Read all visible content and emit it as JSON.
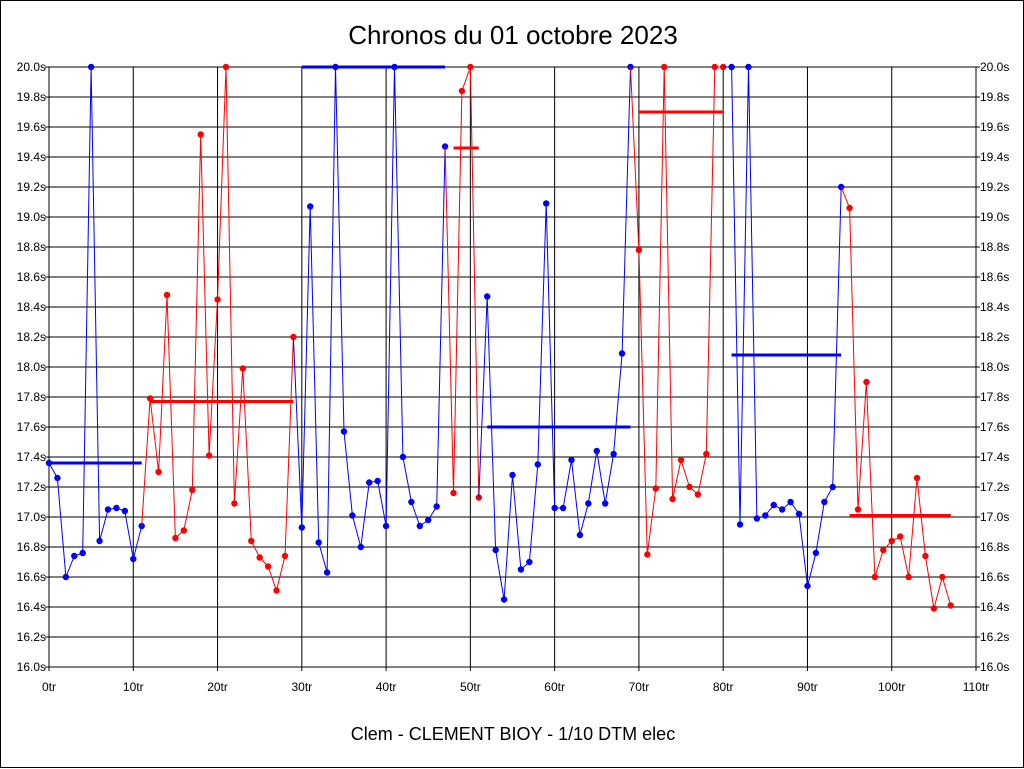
{
  "chart_data": {
    "type": "line",
    "title": "Chronos du 01 octobre 2023",
    "footer": "Clem - CLEMENT BIOY - 1/10 DTM elec",
    "xlim": [
      0,
      110
    ],
    "ylim": [
      16.0,
      20.0
    ],
    "x_ticks": [
      0,
      10,
      20,
      30,
      40,
      50,
      60,
      70,
      80,
      90,
      100,
      110
    ],
    "x_tick_labels": [
      "0tr",
      "10tr",
      "20tr",
      "30tr",
      "40tr",
      "50tr",
      "60tr",
      "70tr",
      "80tr",
      "90tr",
      "100tr",
      "110tr"
    ],
    "y_ticks": [
      16.0,
      16.2,
      16.4,
      16.6,
      16.8,
      17.0,
      17.2,
      17.4,
      17.6,
      17.8,
      18.0,
      18.2,
      18.4,
      18.6,
      18.8,
      19.0,
      19.2,
      19.4,
      19.6,
      19.8,
      20.0
    ],
    "y_tick_labels": [
      "16.0s",
      "16.2s",
      "16.4s",
      "16.6s",
      "16.8s",
      "17.0s",
      "17.2s",
      "17.4s",
      "17.6s",
      "17.8s",
      "18.0s",
      "18.2s",
      "18.4s",
      "18.6s",
      "18.8s",
      "19.0s",
      "19.2s",
      "19.4s",
      "19.6s",
      "19.8s",
      "20.0s"
    ],
    "grid": true,
    "colors": {
      "blue": "#0000ff",
      "red": "#ff0000"
    },
    "series": [
      {
        "color": "blue",
        "points": [
          [
            0,
            17.36
          ],
          [
            1,
            17.26
          ],
          [
            2,
            16.6
          ],
          [
            3,
            16.74
          ],
          [
            4,
            16.76
          ],
          [
            5,
            20.0
          ],
          [
            6,
            16.84
          ],
          [
            7,
            17.05
          ],
          [
            8,
            17.06
          ],
          [
            9,
            17.04
          ],
          [
            10,
            16.72
          ],
          [
            11,
            16.94
          ]
        ],
        "mean": {
          "x": [
            0,
            11
          ],
          "y": 17.36
        }
      },
      {
        "color": "red",
        "points": [
          [
            12,
            17.79
          ],
          [
            13,
            17.3
          ],
          [
            14,
            18.48
          ],
          [
            15,
            16.86
          ],
          [
            16,
            16.91
          ],
          [
            17,
            17.18
          ],
          [
            18,
            19.55
          ],
          [
            19,
            17.41
          ],
          [
            20,
            18.45
          ],
          [
            21,
            20.0
          ],
          [
            22,
            17.09
          ],
          [
            23,
            17.99
          ],
          [
            24,
            16.84
          ],
          [
            25,
            16.73
          ],
          [
            26,
            16.67
          ],
          [
            27,
            16.51
          ],
          [
            28,
            16.74
          ],
          [
            29,
            18.2
          ]
        ],
        "mean": {
          "x": [
            12,
            29
          ],
          "y": 17.77
        }
      },
      {
        "color": "blue",
        "points": [
          [
            30,
            16.93
          ],
          [
            31,
            19.07
          ],
          [
            32,
            16.83
          ],
          [
            33,
            16.63
          ],
          [
            34,
            20.0
          ],
          [
            35,
            17.57
          ],
          [
            36,
            17.01
          ],
          [
            37,
            16.8
          ],
          [
            38,
            17.23
          ],
          [
            39,
            17.24
          ],
          [
            40,
            16.94
          ],
          [
            41,
            20.0
          ],
          [
            42,
            17.4
          ],
          [
            43,
            17.1
          ],
          [
            44,
            16.94
          ],
          [
            45,
            16.98
          ],
          [
            46,
            17.07
          ],
          [
            47,
            19.47
          ]
        ],
        "mean": {
          "x": [
            30,
            47
          ],
          "y": 20.0
        }
      },
      {
        "color": "red",
        "points": [
          [
            48,
            17.16
          ],
          [
            49,
            19.84
          ],
          [
            50,
            20.0
          ],
          [
            51,
            17.13
          ]
        ],
        "mean": {
          "x": [
            48,
            51
          ],
          "y": 19.46
        }
      },
      {
        "color": "blue",
        "points": [
          [
            52,
            18.47
          ],
          [
            53,
            16.78
          ],
          [
            54,
            16.45
          ],
          [
            55,
            17.28
          ],
          [
            56,
            16.65
          ],
          [
            57,
            16.7
          ],
          [
            58,
            17.35
          ],
          [
            59,
            19.09
          ],
          [
            60,
            17.06
          ],
          [
            61,
            17.06
          ],
          [
            62,
            17.38
          ],
          [
            63,
            16.88
          ],
          [
            64,
            17.09
          ],
          [
            65,
            17.44
          ],
          [
            66,
            17.09
          ],
          [
            67,
            17.42
          ],
          [
            68,
            18.09
          ],
          [
            69,
            20.0
          ]
        ],
        "mean": {
          "x": [
            52,
            69
          ],
          "y": 17.6
        }
      },
      {
        "color": "red",
        "points": [
          [
            70,
            18.78
          ],
          [
            71,
            16.75
          ],
          [
            72,
            17.19
          ],
          [
            73,
            20.0
          ],
          [
            74,
            17.12
          ],
          [
            75,
            17.38
          ],
          [
            76,
            17.2
          ],
          [
            77,
            17.15
          ],
          [
            78,
            17.42
          ],
          [
            79,
            20.0
          ],
          [
            80,
            20.0
          ]
        ],
        "mean": {
          "x": [
            70,
            80
          ],
          "y": 19.7
        }
      },
      {
        "color": "blue",
        "points": [
          [
            81,
            20.0
          ],
          [
            82,
            16.95
          ],
          [
            83,
            20.0
          ],
          [
            84,
            16.99
          ],
          [
            85,
            17.01
          ],
          [
            86,
            17.08
          ],
          [
            87,
            17.05
          ],
          [
            88,
            17.1
          ],
          [
            89,
            17.02
          ],
          [
            90,
            16.54
          ],
          [
            91,
            16.76
          ],
          [
            92,
            17.1
          ],
          [
            93,
            17.2
          ],
          [
            94,
            19.2
          ]
        ],
        "mean": {
          "x": [
            81,
            94
          ],
          "y": 18.08
        }
      },
      {
        "color": "red",
        "points": [
          [
            95,
            19.06
          ],
          [
            96,
            17.05
          ],
          [
            97,
            17.9
          ],
          [
            98,
            16.6
          ],
          [
            99,
            16.78
          ],
          [
            100,
            16.84
          ],
          [
            101,
            16.87
          ],
          [
            102,
            16.6
          ],
          [
            103,
            17.26
          ],
          [
            104,
            16.74
          ],
          [
            105,
            16.39
          ],
          [
            106,
            16.6
          ],
          [
            107,
            16.41
          ]
        ],
        "mean": {
          "x": [
            95,
            107
          ],
          "y": 17.01
        }
      }
    ]
  }
}
